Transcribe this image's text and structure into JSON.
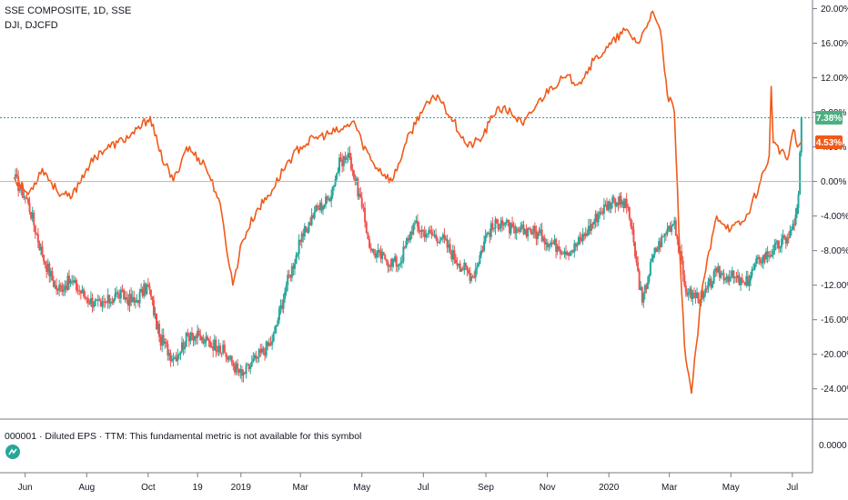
{
  "header": {
    "main_series_label": "SSE COMPOSITE, 1D, SSE",
    "compare_series_label": "DJI, DJCFD"
  },
  "indicator_pane": {
    "label": "000001 · Diluted EPS · TTM: This fundamental metric is not available for this symbol",
    "axis_value": "0.0000"
  },
  "price_badges": {
    "sse": "7.38%",
    "dji": "4.53%"
  },
  "colors": {
    "up_candle": "#26a69a",
    "down_candle": "#ef5350",
    "dji_line": "#f05a1a",
    "last_value_badge": "#4caf82",
    "compare_badge": "#f05a1a",
    "grid": "#f0f3fa"
  },
  "chart_data": {
    "type": "line",
    "title": "SSE COMPOSITE, 1D, SSE",
    "ylabel": "",
    "y_unit": "%",
    "ylim": [
      -27.5,
      21
    ],
    "y_ticks": [
      "20.00%",
      "16.00%",
      "12.00%",
      "8.00%",
      "4.00%",
      "0.00%",
      "-4.00%",
      "-8.00%",
      "-12.00%",
      "-16.00%",
      "-20.00%",
      "-24.00%"
    ],
    "x_ticks": [
      "Jun",
      "Aug",
      "Oct",
      "19",
      "2019",
      "Mar",
      "May",
      "Jul",
      "Sep",
      "Nov",
      "2020",
      "Mar",
      "May",
      "Jul"
    ],
    "grid": false,
    "series": [
      {
        "name": "SSE COMPOSITE",
        "kind": "candlestick",
        "points": [
          [
            "2018-05-21",
            0.5
          ],
          [
            "2018-06-04",
            -2.5
          ],
          [
            "2018-06-18",
            -8.5
          ],
          [
            "2018-07-02",
            -12.5
          ],
          [
            "2018-07-16",
            -11.5
          ],
          [
            "2018-08-01",
            -13.5
          ],
          [
            "2018-08-15",
            -14.5
          ],
          [
            "2018-09-01",
            -13.0
          ],
          [
            "2018-09-17",
            -14.0
          ],
          [
            "2018-10-01",
            -12.0
          ],
          [
            "2018-10-12",
            -18.0
          ],
          [
            "2018-10-26",
            -20.5
          ],
          [
            "2018-11-12",
            -17.5
          ],
          [
            "2018-11-26",
            -18.5
          ],
          [
            "2018-12-10",
            -19.0
          ],
          [
            "2019-01-02",
            -22.5
          ],
          [
            "2019-01-16",
            -20.5
          ],
          [
            "2019-02-01",
            -18.5
          ],
          [
            "2019-02-15",
            -12.0
          ],
          [
            "2019-03-01",
            -7.0
          ],
          [
            "2019-03-15",
            -3.5
          ],
          [
            "2019-03-29",
            -2.0
          ],
          [
            "2019-04-10",
            2.5
          ],
          [
            "2019-04-19",
            2.8
          ],
          [
            "2019-05-01",
            -3.0
          ],
          [
            "2019-05-10",
            -8.0
          ],
          [
            "2019-05-24",
            -9.0
          ],
          [
            "2019-06-07",
            -9.5
          ],
          [
            "2019-06-21",
            -5.0
          ],
          [
            "2019-07-05",
            -6.0
          ],
          [
            "2019-07-19",
            -6.5
          ],
          [
            "2019-08-05",
            -9.5
          ],
          [
            "2019-08-19",
            -11.0
          ],
          [
            "2019-09-02",
            -6.0
          ],
          [
            "2019-09-16",
            -4.5
          ],
          [
            "2019-09-30",
            -6.0
          ],
          [
            "2019-10-14",
            -5.5
          ],
          [
            "2019-10-28",
            -6.5
          ],
          [
            "2019-11-11",
            -7.5
          ],
          [
            "2019-11-25",
            -8.0
          ],
          [
            "2019-12-09",
            -6.0
          ],
          [
            "2019-12-23",
            -3.5
          ],
          [
            "2020-01-06",
            -2.0
          ],
          [
            "2020-01-20",
            -3.0
          ],
          [
            "2020-02-03",
            -14.0
          ],
          [
            "2020-02-14",
            -8.5
          ],
          [
            "2020-02-28",
            -5.5
          ],
          [
            "2020-03-06",
            -4.5
          ],
          [
            "2020-03-16",
            -12.0
          ],
          [
            "2020-03-20",
            -13.0
          ],
          [
            "2020-04-03",
            -13.5
          ],
          [
            "2020-04-17",
            -10.5
          ],
          [
            "2020-05-01",
            -11.0
          ],
          [
            "2020-05-15",
            -12.0
          ],
          [
            "2020-05-29",
            -9.0
          ],
          [
            "2020-06-12",
            -8.0
          ],
          [
            "2020-06-26",
            -6.5
          ],
          [
            "2020-07-03",
            -5.0
          ],
          [
            "2020-07-07",
            -1.5
          ],
          [
            "2020-07-10",
            7.38
          ]
        ]
      },
      {
        "name": "DJI",
        "kind": "line",
        "points": [
          [
            "2018-05-21",
            0.5
          ],
          [
            "2018-06-04",
            -1.5
          ],
          [
            "2018-06-18",
            1.5
          ],
          [
            "2018-07-02",
            -1.0
          ],
          [
            "2018-07-16",
            -2.0
          ],
          [
            "2018-08-01",
            1.5
          ],
          [
            "2018-08-15",
            3.5
          ],
          [
            "2018-09-01",
            4.5
          ],
          [
            "2018-09-17",
            5.5
          ],
          [
            "2018-10-03",
            7.5
          ],
          [
            "2018-10-12",
            3.5
          ],
          [
            "2018-10-26",
            0.0
          ],
          [
            "2018-11-08",
            4.0
          ],
          [
            "2018-11-26",
            2.0
          ],
          [
            "2018-12-10",
            -2.0
          ],
          [
            "2018-12-24",
            -12.0
          ],
          [
            "2019-01-02",
            -7.0
          ],
          [
            "2019-01-16",
            -3.5
          ],
          [
            "2019-02-01",
            -1.0
          ],
          [
            "2019-02-15",
            2.0
          ],
          [
            "2019-03-01",
            4.0
          ],
          [
            "2019-03-15",
            5.0
          ],
          [
            "2019-03-29",
            5.5
          ],
          [
            "2019-04-12",
            6.0
          ],
          [
            "2019-04-23",
            7.0
          ],
          [
            "2019-05-01",
            4.5
          ],
          [
            "2019-05-13",
            2.0
          ],
          [
            "2019-05-31",
            0.0
          ],
          [
            "2019-06-14",
            4.5
          ],
          [
            "2019-06-28",
            8.0
          ],
          [
            "2019-07-15",
            10.0
          ],
          [
            "2019-07-31",
            7.0
          ],
          [
            "2019-08-14",
            4.0
          ],
          [
            "2019-08-28",
            5.0
          ],
          [
            "2019-09-12",
            8.5
          ],
          [
            "2019-09-26",
            8.0
          ],
          [
            "2019-10-08",
            6.5
          ],
          [
            "2019-10-22",
            9.0
          ],
          [
            "2019-11-05",
            11.0
          ],
          [
            "2019-11-19",
            12.0
          ],
          [
            "2019-12-03",
            11.5
          ],
          [
            "2019-12-17",
            14.0
          ],
          [
            "2019-12-31",
            15.5
          ],
          [
            "2020-01-17",
            17.5
          ],
          [
            "2020-01-31",
            16.0
          ],
          [
            "2020-02-12",
            19.5
          ],
          [
            "2020-02-21",
            17.5
          ],
          [
            "2020-02-28",
            10.0
          ],
          [
            "2020-03-06",
            8.0
          ],
          [
            "2020-03-12",
            -10.0
          ],
          [
            "2020-03-16",
            -19.0
          ],
          [
            "2020-03-23",
            -24.5
          ],
          [
            "2020-04-03",
            -12.0
          ],
          [
            "2020-04-17",
            -4.0
          ],
          [
            "2020-05-01",
            -5.5
          ],
          [
            "2020-05-15",
            -4.5
          ],
          [
            "2020-05-29",
            -0.5
          ],
          [
            "2020-06-08",
            3.0
          ],
          [
            "2020-06-10",
            11.0
          ],
          [
            "2020-06-12",
            4.5
          ],
          [
            "2020-06-26",
            2.5
          ],
          [
            "2020-07-02",
            6.0
          ],
          [
            "2020-07-06",
            4.0
          ],
          [
            "2020-07-10",
            4.53
          ]
        ]
      }
    ]
  }
}
